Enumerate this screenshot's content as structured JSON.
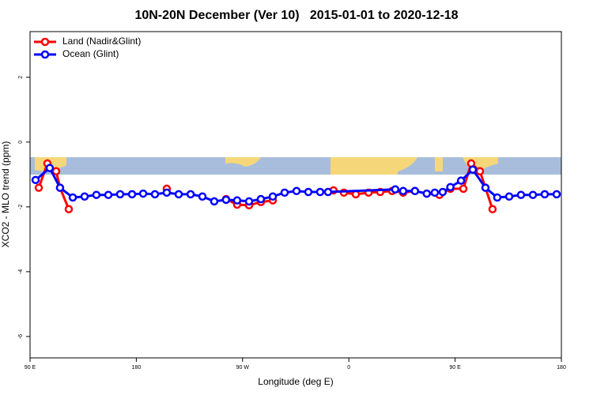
{
  "chart_data": {
    "type": "line",
    "title": "10N-20N December (Ver 10)   2015-01-01 to 2020-12-18",
    "x_label": "Longitude (deg E)",
    "y_label": "XCO2 - MLO trend (ppm)",
    "xlim": [
      90,
      540
    ],
    "xticks": [
      {
        "value": 90,
        "label": "90 E"
      },
      180,
      {
        "value": 270,
        "label": "90 W"
      },
      {
        "value": 360,
        "label": "0"
      },
      {
        "value": 450,
        "label": "90 E"
      },
      {
        "value": 540,
        "label": "180"
      }
    ],
    "ylim": [
      -6.66,
      3.41
    ],
    "yticks": [
      2,
      0,
      -2,
      -4,
      -6
    ],
    "legend": "top-left",
    "series": [
      {
        "name": "Land (Nadir&Glint)",
        "color": "#ff0000",
        "x": [
          97.4,
          104.7,
          112.1,
          115.4,
          122.8,
          null,
          205.8,
          null,
          256,
          265.4,
          275.5,
          285.5,
          295.6,
          null,
          347,
          355.8,
          365.9,
          376.7,
          386.6,
          396.7,
          406,
          416,
          426,
          436.8,
          446,
          457,
          463.6,
          471,
          475.7,
          481.7
        ],
        "values": [
          -1.41,
          -0.66,
          -0.9,
          -1.41,
          -2.07,
          null,
          -1.44,
          null,
          -1.76,
          -1.93,
          -1.95,
          -1.85,
          -1.8,
          null,
          -1.49,
          -1.56,
          -1.61,
          -1.56,
          -1.54,
          -1.51,
          -1.56,
          -1.51,
          -1.59,
          -1.63,
          -1.44,
          -1.44,
          -0.66,
          -0.9,
          -1.41,
          -2.07
        ]
      },
      {
        "name": "Ocean (Glint)",
        "color": "#0000ff",
        "x": [
          94.7,
          106.7,
          115.4,
          126.2,
          136.2,
          146.2,
          156.3,
          166.3,
          176.4,
          185.8,
          195.8,
          205.8,
          215.9,
          226,
          236,
          246,
          256,
          265.4,
          275.5,
          285.5,
          295.6,
          305.6,
          315.7,
          325.7,
          335.7,
          342.4,
          399.3,
          406,
          416,
          426,
          432.8,
          439.5,
          446,
          455,
          465,
          475.7,
          485.7,
          495.8,
          505.8,
          515.9,
          525.9,
          536
        ],
        "values": [
          -1.17,
          -0.8,
          -1.41,
          -1.71,
          -1.68,
          -1.63,
          -1.63,
          -1.61,
          -1.61,
          -1.59,
          -1.61,
          -1.56,
          -1.61,
          -1.61,
          -1.68,
          -1.83,
          -1.78,
          -1.8,
          -1.83,
          -1.76,
          -1.68,
          -1.56,
          -1.51,
          -1.54,
          -1.54,
          -1.54,
          -1.46,
          -1.51,
          -1.51,
          -1.59,
          -1.56,
          -1.54,
          -1.39,
          -1.19,
          -0.85,
          -1.41,
          -1.71,
          -1.68,
          -1.63,
          -1.63,
          -1.61,
          -1.61
        ]
      }
    ]
  }
}
